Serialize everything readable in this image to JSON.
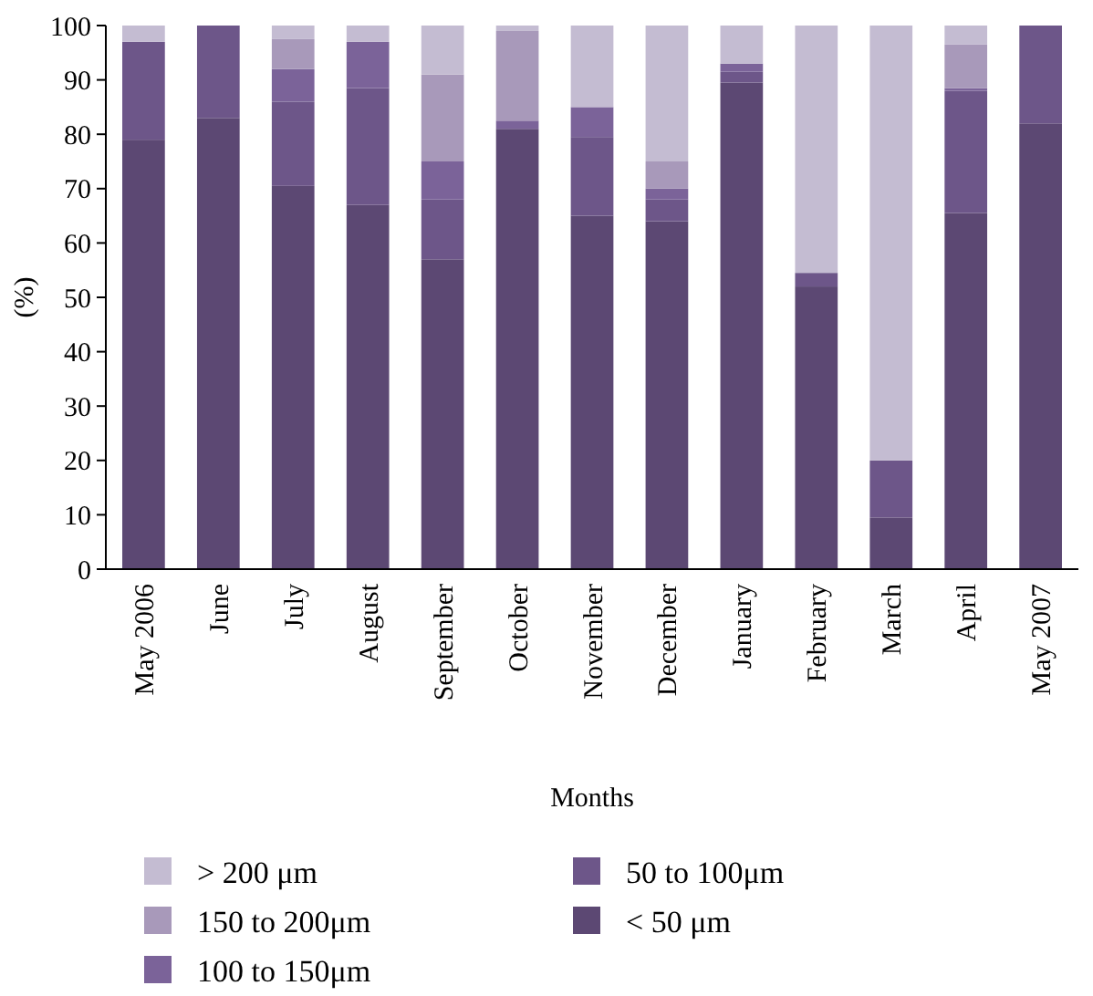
{
  "chart_data": {
    "type": "bar",
    "stacked": true,
    "xlabel": "Months",
    "ylabel": "(%)",
    "categories": [
      "May 2006",
      "June",
      "July",
      "August",
      "September",
      "October",
      "November",
      "December",
      "January",
      "February",
      "March",
      "April",
      "May 2007"
    ],
    "ylim": [
      0,
      100
    ],
    "yticks": [
      0,
      10,
      20,
      30,
      40,
      50,
      60,
      70,
      80,
      90,
      100
    ],
    "legend": "bottom",
    "grid": false,
    "series": [
      {
        "name": "< 50 μm",
        "color": "#5c4873",
        "values": [
          79,
          83,
          70.5,
          67,
          57,
          81,
          65,
          64,
          89.5,
          52,
          9.5,
          65.5,
          82
        ]
      },
      {
        "name": "50 to 100μm",
        "color": "#6d5689",
        "values": [
          18,
          17,
          15.5,
          21.5,
          11,
          0,
          14.5,
          4,
          2,
          2.5,
          10.5,
          22.5,
          18
        ]
      },
      {
        "name": "100 to 150μm",
        "color": "#7b6399",
        "values": [
          0,
          0,
          6,
          8.5,
          7,
          1.5,
          5.5,
          2,
          1.5,
          0,
          0,
          0.5,
          0
        ]
      },
      {
        "name": "150 to 200μm",
        "color": "#a899ba",
        "values": [
          0,
          0,
          5.5,
          0,
          16,
          16.5,
          0,
          5,
          0,
          0,
          0,
          8,
          0
        ]
      },
      {
        "name": "> 200 μm",
        "color": "#c4bcd2",
        "values": [
          3,
          0,
          2.5,
          3,
          9,
          1,
          15,
          25,
          7,
          45.5,
          80,
          3.5,
          0
        ]
      }
    ]
  }
}
